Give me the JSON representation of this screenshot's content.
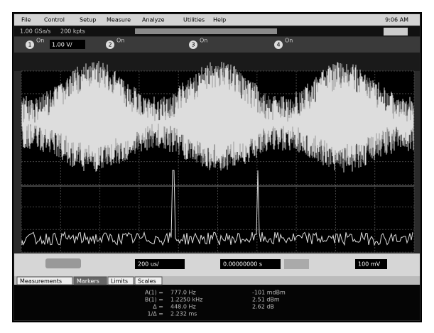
{
  "menu": {
    "items": [
      "File",
      "Control",
      "Setup",
      "Measure",
      "Analyze",
      "Utilities",
      "Help"
    ],
    "clock": "9:06 AM"
  },
  "status": {
    "sample_rate": "1.00 GSa/s",
    "memory": "200 kpts"
  },
  "channels": {
    "labels": [
      "1",
      "2",
      "3",
      "4"
    ],
    "ch1_scale": "1.00 V/",
    "state": "On"
  },
  "timebase": {
    "scale": "200 us/",
    "position": "0.00000000 s",
    "trigger": "100 mV"
  },
  "tabs": [
    "Measurements",
    "Markers",
    "Limits",
    "Scales"
  ],
  "markers": {
    "rows": [
      [
        "A(1) =",
        "777.0 Hz",
        "-101 mdBm"
      ],
      [
        "B(1) =",
        "1.2250 kHz",
        "2.51 dBm"
      ],
      [
        "Δ =",
        "448.0 Hz",
        "2.62 dB"
      ],
      [
        "1/Δ =",
        "2.232 ms",
        ""
      ]
    ]
  }
}
